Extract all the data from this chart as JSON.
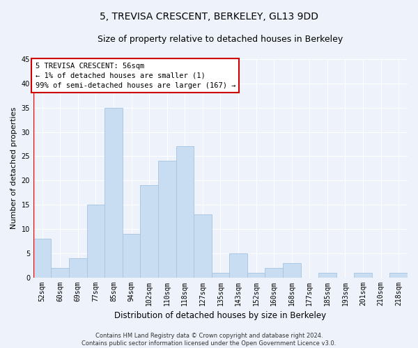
{
  "title": "5, TREVISA CRESCENT, BERKELEY, GL13 9DD",
  "subtitle": "Size of property relative to detached houses in Berkeley",
  "xlabel": "Distribution of detached houses by size in Berkeley",
  "ylabel": "Number of detached properties",
  "categories": [
    "52sqm",
    "60sqm",
    "69sqm",
    "77sqm",
    "85sqm",
    "94sqm",
    "102sqm",
    "110sqm",
    "118sqm",
    "127sqm",
    "135sqm",
    "143sqm",
    "152sqm",
    "160sqm",
    "168sqm",
    "177sqm",
    "185sqm",
    "193sqm",
    "201sqm",
    "210sqm",
    "218sqm"
  ],
  "values": [
    8,
    2,
    4,
    15,
    35,
    9,
    19,
    24,
    27,
    13,
    1,
    5,
    1,
    2,
    3,
    0,
    1,
    0,
    1,
    0,
    1
  ],
  "bar_color": "#c9ddf2",
  "bar_edge_color": "#a8c4e0",
  "annotation_title": "5 TREVISA CRESCENT: 56sqm",
  "annotation_line1": "← 1% of detached houses are smaller (1)",
  "annotation_line2": "99% of semi-detached houses are larger (167) →",
  "annotation_box_color": "#ffffff",
  "annotation_box_edge": "#cc0000",
  "red_line_x": 0,
  "ylim": [
    0,
    45
  ],
  "yticks": [
    0,
    5,
    10,
    15,
    20,
    25,
    30,
    35,
    40,
    45
  ],
  "footer1": "Contains HM Land Registry data © Crown copyright and database right 2024.",
  "footer2": "Contains public sector information licensed under the Open Government Licence v3.0.",
  "background_color": "#eef2fa",
  "grid_color": "#ffffff",
  "title_fontsize": 10,
  "subtitle_fontsize": 9,
  "tick_fontsize": 7,
  "ylabel_fontsize": 8,
  "xlabel_fontsize": 8.5,
  "footer_fontsize": 6,
  "annotation_fontsize": 7.5
}
